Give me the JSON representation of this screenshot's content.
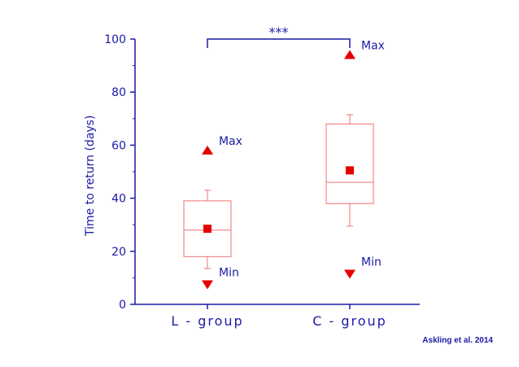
{
  "chart_data": {
    "type": "box",
    "ylabel": "Time to return (days)",
    "xlabel": "",
    "ylim": [
      0,
      100
    ],
    "yticks": [
      0,
      20,
      40,
      60,
      80,
      100
    ],
    "categories": [
      "L - group",
      "C - group"
    ],
    "boxes": [
      {
        "category": "L - group",
        "whisker_low": 13.5,
        "q1": 18,
        "median": 28,
        "q3": 39,
        "whisker_high": 43,
        "mean": 28.5,
        "max": 58,
        "min": 7.5
      },
      {
        "category": "C - group",
        "whisker_low": 29.5,
        "q1": 38,
        "median": 46,
        "q3": 68,
        "whisker_high": 71.5,
        "mean": 50.5,
        "max": 94,
        "min": 11.5
      }
    ],
    "point_labels": {
      "max": "Max",
      "min": "Min"
    },
    "significance": {
      "label": "***",
      "between": [
        "L - group",
        "C - group"
      ],
      "y": 100
    },
    "source": "Askling et al. 2014",
    "colors": {
      "axis": "#1a1aa6",
      "data": "#e60000",
      "box": "#f07070"
    }
  }
}
